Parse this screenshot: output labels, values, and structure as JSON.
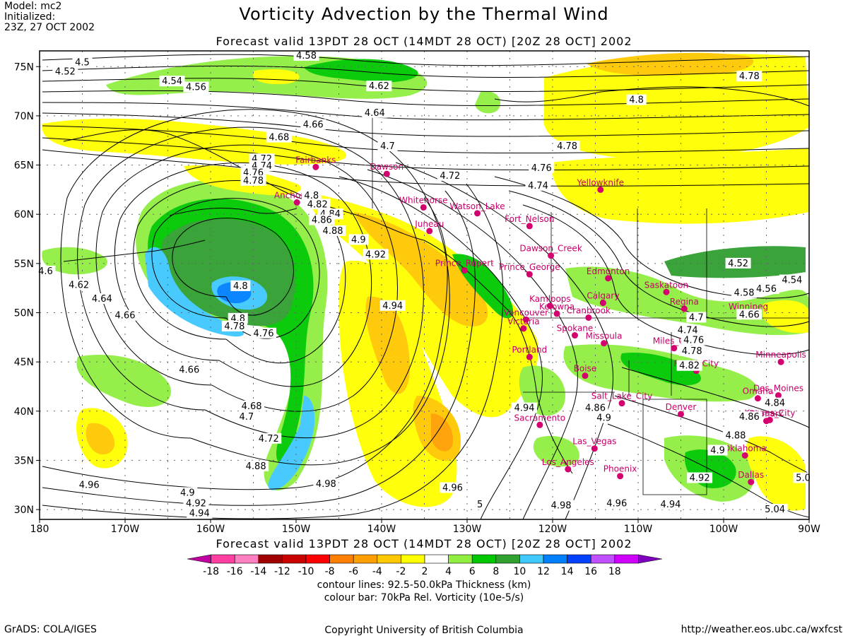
{
  "header": {
    "model_line1": "Model: mc2",
    "model_line2": "Initialized:",
    "model_line3": "23Z, 27 OCT 2002",
    "title": "Vorticity Advection by the Thermal Wind",
    "forecast_valid": "Forecast valid 13PDT 28 OCT (14MDT 28 OCT) [20Z 28 OCT] 2002"
  },
  "axes": {
    "lat_labels": [
      "75N",
      "70N",
      "65N",
      "60N",
      "55N",
      "50N",
      "45N",
      "40N",
      "35N",
      "30N"
    ],
    "lon_labels": [
      "180",
      "170W",
      "160W",
      "150W",
      "140W",
      "130W",
      "120W",
      "110W",
      "100W",
      "90W"
    ]
  },
  "cities": [
    {
      "name": "Fairbanks",
      "lon": -147.7,
      "lat": 64.8
    },
    {
      "name": "Dawson",
      "lon": -139.4,
      "lat": 64.1
    },
    {
      "name": "Anchorage",
      "lon": -149.9,
      "lat": 61.2
    },
    {
      "name": "Whitehorse",
      "lon": -135.1,
      "lat": 60.7
    },
    {
      "name": "Watson_Lake",
      "lon": -128.8,
      "lat": 60.1
    },
    {
      "name": "Juneau",
      "lon": -134.4,
      "lat": 58.3
    },
    {
      "name": "Fort_Nelson",
      "lon": -122.7,
      "lat": 58.8
    },
    {
      "name": "Dawson_Creek",
      "lon": -120.2,
      "lat": 55.8
    },
    {
      "name": "Yellowknife",
      "lon": -114.4,
      "lat": 62.5
    },
    {
      "name": "Prince_George",
      "lon": -122.7,
      "lat": 53.9
    },
    {
      "name": "Edmonton",
      "lon": -113.5,
      "lat": 53.5
    },
    {
      "name": "Prince_Rupert",
      "lon": -130.3,
      "lat": 54.3
    },
    {
      "name": "Kamloops",
      "lon": -120.3,
      "lat": 50.7
    },
    {
      "name": "Calgary",
      "lon": -114.1,
      "lat": 51.0
    },
    {
      "name": "Saskatoon",
      "lon": -106.7,
      "lat": 52.1
    },
    {
      "name": "Kelowna",
      "lon": -119.5,
      "lat": 49.9
    },
    {
      "name": "Cranbrook",
      "lon": -115.8,
      "lat": 49.5
    },
    {
      "name": "Regina",
      "lon": -104.6,
      "lat": 50.4
    },
    {
      "name": "Winnipeg",
      "lon": -97.1,
      "lat": 49.9
    },
    {
      "name": "Vancouver",
      "lon": -123.1,
      "lat": 49.3
    },
    {
      "name": "Victoria",
      "lon": -123.4,
      "lat": 48.4
    },
    {
      "name": "Spokane",
      "lon": -117.4,
      "lat": 47.7
    },
    {
      "name": "Missoula",
      "lon": -114.0,
      "lat": 46.9
    },
    {
      "name": "Miles_City",
      "lon": -105.8,
      "lat": 46.4
    },
    {
      "name": "Portland",
      "lon": -122.7,
      "lat": 45.5
    },
    {
      "name": "Minneapolis",
      "lon": -93.3,
      "lat": 45.0
    },
    {
      "name": "Boise",
      "lon": -116.2,
      "lat": 43.6
    },
    {
      "name": "Rapid_City",
      "lon": -103.2,
      "lat": 44.1
    },
    {
      "name": "Des_Moines",
      "lon": -93.6,
      "lat": 41.6
    },
    {
      "name": "Salt_Lake_City",
      "lon": -111.9,
      "lat": 40.8
    },
    {
      "name": "Omaha",
      "lon": -96.0,
      "lat": 41.3
    },
    {
      "name": "Kansas_City",
      "lon": -94.6,
      "lat": 39.1
    },
    {
      "name": "Sacramento",
      "lon": -121.5,
      "lat": 38.6
    },
    {
      "name": "Denver",
      "lon": -105.0,
      "lat": 39.7
    },
    {
      "name": "Bismark",
      "lon": -95.0,
      "lat": 39.0
    },
    {
      "name": "Las_Vegas",
      "lon": -115.1,
      "lat": 36.2
    },
    {
      "name": "Oklahoma",
      "lon": -97.5,
      "lat": 35.5
    },
    {
      "name": "Phoenix",
      "lon": -112.1,
      "lat": 33.4
    },
    {
      "name": "Los_Angeles",
      "lon": -118.2,
      "lat": 34.1
    },
    {
      "name": "Dallas",
      "lon": -96.8,
      "lat": 32.8
    }
  ],
  "contour_labels": [
    {
      "text": "4.5",
      "lon": -175.0,
      "lat": 75.4
    },
    {
      "text": "4.52",
      "lon": -177.0,
      "lat": 74.5
    },
    {
      "text": "4.54",
      "lon": -164.5,
      "lat": 73.5
    },
    {
      "text": "4.56",
      "lon": -161.7,
      "lat": 72.9
    },
    {
      "text": "4.58",
      "lon": -148.8,
      "lat": 76.1
    },
    {
      "text": "4.62",
      "lon": -140.3,
      "lat": 73.0
    },
    {
      "text": "4.64",
      "lon": -140.8,
      "lat": 70.3
    },
    {
      "text": "4.66",
      "lon": -148.0,
      "lat": 69.1
    },
    {
      "text": "4.68",
      "lon": -152.0,
      "lat": 67.8
    },
    {
      "text": "4.7",
      "lon": -139.3,
      "lat": 66.9
    },
    {
      "text": "4.72",
      "lon": -154.0,
      "lat": 65.6
    },
    {
      "text": "4.74",
      "lon": -154.0,
      "lat": 64.9
    },
    {
      "text": "4.76",
      "lon": -155.0,
      "lat": 64.2
    },
    {
      "text": "4.78",
      "lon": -155.0,
      "lat": 63.4
    },
    {
      "text": "4.8",
      "lon": -148.2,
      "lat": 61.9
    },
    {
      "text": "4.82",
      "lon": -147.5,
      "lat": 61.0
    },
    {
      "text": "4.84",
      "lon": -146.0,
      "lat": 60.0
    },
    {
      "text": "4.86",
      "lon": -147.0,
      "lat": 59.4
    },
    {
      "text": "4.88",
      "lon": -145.7,
      "lat": 58.3
    },
    {
      "text": "4.9",
      "lon": -142.7,
      "lat": 57.4
    },
    {
      "text": "4.92",
      "lon": -140.7,
      "lat": 55.9
    },
    {
      "text": "4.94",
      "lon": -138.7,
      "lat": 50.7
    },
    {
      "text": "4.72",
      "lon": -132.0,
      "lat": 63.9
    },
    {
      "text": "4.74",
      "lon": -121.7,
      "lat": 62.9
    },
    {
      "text": "4.76",
      "lon": -121.3,
      "lat": 64.7
    },
    {
      "text": "4.78",
      "lon": -118.3,
      "lat": 66.9
    },
    {
      "text": "4.8",
      "lon": -110.2,
      "lat": 71.6
    },
    {
      "text": "4.78",
      "lon": -97.0,
      "lat": 74.0
    },
    {
      "text": "4.6",
      "lon": -179.3,
      "lat": 54.2
    },
    {
      "text": "4.62",
      "lon": -175.4,
      "lat": 52.8
    },
    {
      "text": "4.64",
      "lon": -172.7,
      "lat": 51.4
    },
    {
      "text": "4.66",
      "lon": -170.0,
      "lat": 49.7
    },
    {
      "text": "4.8",
      "lon": -156.5,
      "lat": 52.7
    },
    {
      "text": "4.8",
      "lon": -156.8,
      "lat": 49.4
    },
    {
      "text": "4.78",
      "lon": -157.2,
      "lat": 48.6
    },
    {
      "text": "4.76",
      "lon": -153.8,
      "lat": 47.9
    },
    {
      "text": "4.66",
      "lon": -162.5,
      "lat": 44.2
    },
    {
      "text": "4.68",
      "lon": -155.2,
      "lat": 40.5
    },
    {
      "text": "4.7",
      "lon": -155.8,
      "lat": 39.4
    },
    {
      "text": "4.72",
      "lon": -153.2,
      "lat": 37.2
    },
    {
      "text": "4.88",
      "lon": -154.7,
      "lat": 34.4
    },
    {
      "text": "4.96",
      "lon": -174.2,
      "lat": 32.5
    },
    {
      "text": "4.9",
      "lon": -162.7,
      "lat": 31.7
    },
    {
      "text": "4.92",
      "lon": -161.7,
      "lat": 30.6
    },
    {
      "text": "4.94",
      "lon": -161.3,
      "lat": 29.6
    },
    {
      "text": "4.98",
      "lon": -146.5,
      "lat": 32.6
    },
    {
      "text": "4.96",
      "lon": -131.7,
      "lat": 32.2
    },
    {
      "text": "4.94",
      "lon": -123.3,
      "lat": 40.3
    },
    {
      "text": "4.98",
      "lon": -119.0,
      "lat": 30.4
    },
    {
      "text": "5",
      "lon": -128.5,
      "lat": 30.5
    },
    {
      "text": "4.96",
      "lon": -112.5,
      "lat": 30.6
    },
    {
      "text": "4.94",
      "lon": -106.2,
      "lat": 30.5
    },
    {
      "text": "4.92",
      "lon": -102.8,
      "lat": 33.2
    },
    {
      "text": "4.9",
      "lon": -100.7,
      "lat": 36.0
    },
    {
      "text": "4.88",
      "lon": -98.6,
      "lat": 37.5
    },
    {
      "text": "4.86",
      "lon": -97.0,
      "lat": 39.4
    },
    {
      "text": "4.84",
      "lon": -94.0,
      "lat": 40.8
    },
    {
      "text": "4.86",
      "lon": -115.0,
      "lat": 40.3
    },
    {
      "text": "4.9",
      "lon": -114.0,
      "lat": 39.3
    },
    {
      "text": "4.82",
      "lon": -104.0,
      "lat": 44.6
    },
    {
      "text": "4.78",
      "lon": -103.7,
      "lat": 46.1
    },
    {
      "text": "4.76",
      "lon": -103.5,
      "lat": 47.2
    },
    {
      "text": "4.74",
      "lon": -104.2,
      "lat": 48.2
    },
    {
      "text": "4.7",
      "lon": -103.2,
      "lat": 49.5
    },
    {
      "text": "4.66",
      "lon": -97.0,
      "lat": 49.8
    },
    {
      "text": "4.58",
      "lon": -97.6,
      "lat": 52.0
    },
    {
      "text": "4.56",
      "lon": -95.0,
      "lat": 52.4
    },
    {
      "text": "4.54",
      "lon": -92.0,
      "lat": 53.3
    },
    {
      "text": "4.52",
      "lon": -98.3,
      "lat": 55.0
    },
    {
      "text": "5.04",
      "lon": -94.0,
      "lat": 30.0
    },
    {
      "text": "5.0",
      "lon": -90.7,
      "lat": 33.2
    }
  ],
  "colorbar": {
    "levels": [
      "-18",
      "-16",
      "-14",
      "-12",
      "-10",
      "-8",
      "-6",
      "-4",
      "-2",
      "2",
      "4",
      "6",
      "8",
      "10",
      "12",
      "14",
      "16",
      "18"
    ],
    "colors": [
      "#c000a0",
      "#ff40a0",
      "#ff80c0",
      "#a00000",
      "#c80000",
      "#ff0000",
      "#ff8000",
      "#ffa000",
      "#ffc800",
      "#ffff00",
      "#ffffff",
      "#90ee40",
      "#00c800",
      "#30a030",
      "#40c8ff",
      "#0080ff",
      "#0040ff",
      "#c050ff",
      "#d000ff",
      "#8000c0"
    ],
    "description1": "contour lines: 92.5-50.0kPa Thickness (km)",
    "description2": "colour bar: 70kPa Rel. Vorticity (10e-5/s)"
  },
  "footer": {
    "left": "GrADS: COLA/IGES",
    "center": "Copyright University of British Columbia",
    "right": "http://weather.eos.ubc.ca/wxfcst"
  }
}
